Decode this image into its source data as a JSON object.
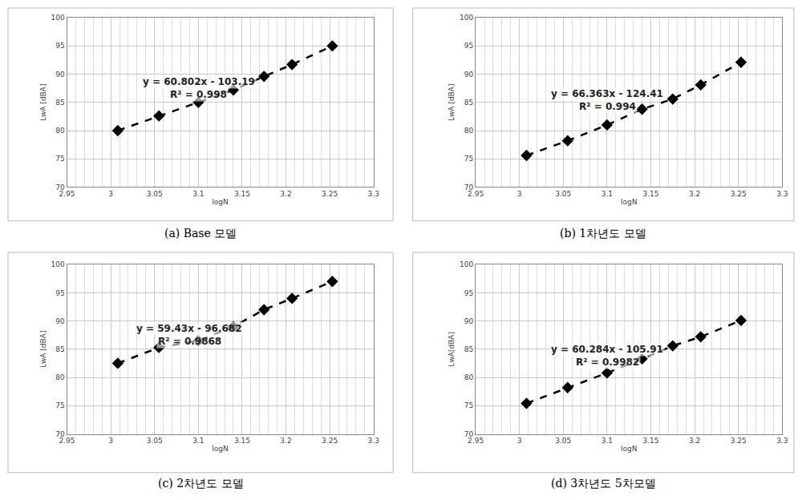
{
  "chart_data": [
    {
      "type": "line",
      "title": "(a) Base 모델",
      "x_label": "logN",
      "y_label": "LwA [dBA]",
      "x": [
        3.008,
        3.055,
        3.1,
        3.14,
        3.175,
        3.207,
        3.253
      ],
      "values": [
        80.0,
        82.6,
        85.0,
        87.2,
        89.6,
        91.7,
        95.0
      ],
      "xlim": [
        2.95,
        3.3
      ],
      "xticks": [
        2.95,
        3,
        3.05,
        3.1,
        3.15,
        3.2,
        3.25,
        3.3
      ],
      "ylim": [
        70,
        100
      ],
      "yticks": [
        70,
        75,
        80,
        85,
        90,
        95,
        100
      ],
      "annotations": [
        "y = 60.802x - 103.19",
        "R² = 0.998"
      ],
      "color": "#000000",
      "marker": "diamond",
      "line_style": "dash",
      "grid": true
    },
    {
      "type": "line",
      "title": "(b) 1차년도 모델",
      "x_label": "logN",
      "y_label": "LwA [dBA]",
      "x": [
        3.008,
        3.055,
        3.1,
        3.14,
        3.175,
        3.207,
        3.253
      ],
      "values": [
        75.6,
        78.2,
        81.0,
        83.8,
        85.6,
        88.1,
        92.1
      ],
      "xlim": [
        2.95,
        3.3
      ],
      "xticks": [
        2.95,
        3,
        3.05,
        3.1,
        3.15,
        3.2,
        3.25,
        3.3
      ],
      "ylim": [
        70,
        100
      ],
      "yticks": [
        70,
        75,
        80,
        85,
        90,
        95,
        100
      ],
      "annotations": [
        "y = 66.363x - 124.41",
        "R² = 0.994"
      ],
      "color": "#000000",
      "marker": "diamond",
      "line_style": "dash",
      "grid": true
    },
    {
      "type": "line",
      "title": "(c) 2차년도 모델",
      "x_label": "logN",
      "y_label": "LwA [dBA]",
      "x": [
        3.008,
        3.055,
        3.1,
        3.14,
        3.175,
        3.207,
        3.253
      ],
      "values": [
        82.5,
        85.3,
        86.5,
        89.0,
        92.0,
        94.0,
        97.0
      ],
      "xlim": [
        2.95,
        3.3
      ],
      "xticks": [
        2.95,
        3,
        3.05,
        3.1,
        3.15,
        3.2,
        3.25,
        3.3
      ],
      "ylim": [
        70,
        100
      ],
      "yticks": [
        70,
        75,
        80,
        85,
        90,
        95,
        100
      ],
      "annotations": [
        "y = 59.43x - 96.682",
        "R² = 0.9868"
      ],
      "color": "#000000",
      "marker": "diamond",
      "line_style": "dash",
      "grid": true
    },
    {
      "type": "line",
      "title": "(d) 3차년도 5차모델",
      "x_label": "logN",
      "y_label": "LwA[dBA]",
      "x": [
        3.008,
        3.055,
        3.1,
        3.14,
        3.175,
        3.207,
        3.253
      ],
      "values": [
        75.4,
        78.2,
        80.8,
        83.3,
        85.6,
        87.2,
        90.1
      ],
      "xlim": [
        2.95,
        3.3
      ],
      "xticks": [
        2.95,
        3,
        3.05,
        3.1,
        3.15,
        3.2,
        3.25,
        3.3
      ],
      "ylim": [
        70,
        100
      ],
      "yticks": [
        70,
        75,
        80,
        85,
        90,
        95,
        100
      ],
      "annotations": [
        "y = 60.284x - 105.91",
        "R² = 0.9982"
      ],
      "color": "#000000",
      "marker": "diamond",
      "line_style": "dash",
      "grid": true
    }
  ]
}
